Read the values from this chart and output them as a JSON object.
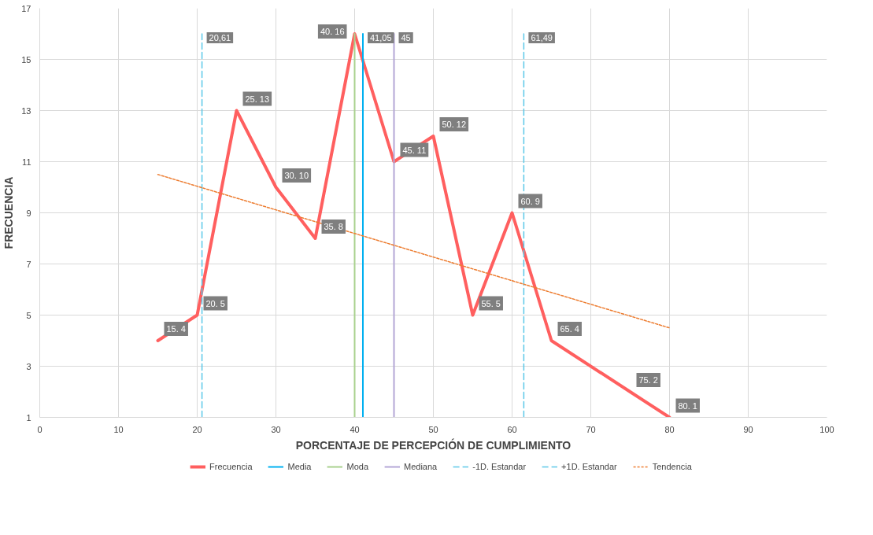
{
  "chart_data": {
    "type": "line",
    "xlabel": "PORCENTAJE DE PERCEPCIÓN DE CUMPLIMIENTO",
    "ylabel": "FRECUENCIA",
    "xlim": [
      0,
      100
    ],
    "xticks": [
      0,
      10,
      20,
      30,
      40,
      50,
      60,
      70,
      80,
      90,
      100
    ],
    "ylim": [
      1,
      17
    ],
    "yticks": [
      1,
      3,
      5,
      7,
      9,
      11,
      13,
      15,
      17
    ],
    "grid": true,
    "legend": "bottom",
    "marker": "none",
    "series": [
      {
        "name": "Frecuencia",
        "color": "#ff5f5f",
        "x": [
          15,
          20,
          25,
          30,
          35,
          40,
          45,
          50,
          55,
          60,
          65,
          75,
          80
        ],
        "values": [
          4,
          5,
          13,
          10,
          8,
          16,
          11,
          12,
          5,
          9,
          4,
          2,
          1
        ],
        "value_labels": [
          "15. 4",
          "20. 5",
          "25. 13",
          "30. 10",
          "35. 8",
          "40. 16",
          "45. 11",
          "50. 12",
          "55. 5",
          "60. 9",
          "65. 4",
          "75. 2",
          "80. 1"
        ],
        "line_style": "solid"
      },
      {
        "name": "Media",
        "color": "#00b0f0",
        "x": [
          41.05,
          41.05
        ],
        "values": [
          1,
          16
        ],
        "line_style": "solid"
      },
      {
        "name": "Moda",
        "color": "#a9d18e",
        "x": [
          40,
          40
        ],
        "values": [
          1,
          16
        ],
        "line_style": "solid"
      },
      {
        "name": "Mediana",
        "color": "#b4a7d6",
        "x": [
          45,
          45
        ],
        "values": [
          1,
          16
        ],
        "line_style": "solid"
      },
      {
        "name": "-1D. Estandar",
        "color": "#5bc8e8",
        "x": [
          20.61,
          20.61
        ],
        "values": [
          1,
          16
        ],
        "line_style": "dashed"
      },
      {
        "name": "+1D. Estandar",
        "color": "#5bc8e8",
        "x": [
          61.49,
          61.49
        ],
        "values": [
          1,
          16
        ],
        "line_style": "dashed"
      },
      {
        "name": "Tendencia",
        "color": "#ed7d31",
        "x": [
          15,
          80
        ],
        "values": [
          10.5,
          4.5
        ],
        "line_style": "dotted"
      }
    ],
    "annotations": [
      {
        "text": "20,61",
        "x": 20.61,
        "y": 16
      },
      {
        "text": "41,05",
        "x": 41.05,
        "y": 16
      },
      {
        "text": "45",
        "x": 45,
        "y": 16
      },
      {
        "text": "61,49",
        "x": 61.49,
        "y": 16
      }
    ]
  }
}
